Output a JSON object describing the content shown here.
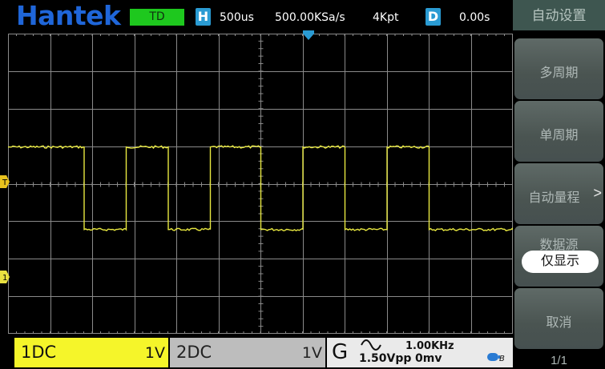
{
  "topbar": {
    "logo": "Hantek",
    "trigger_mode": "TD",
    "horizontal_icon": "H",
    "timebase": "500us",
    "sample_rate": "500.00KSa/s",
    "memory_depth": "4Kpt",
    "delay_icon": "D",
    "delay": "0.00s"
  },
  "grid_markers": {
    "trigger_level_marker": "T",
    "ch1_ground_marker": "1"
  },
  "bottombar": {
    "ch1": {
      "name": "1DC",
      "scale": "1V",
      "color": "#f5f52a"
    },
    "ch2": {
      "name": "2DC",
      "scale": "1V",
      "color": "#bdbdbd"
    },
    "generator": {
      "letter": "G",
      "wave_icon": "sine-icon",
      "frequency": "1.00KHz",
      "amplitude": "1.50Vpp",
      "offset": "0mv"
    }
  },
  "menu": {
    "title": "自动设置",
    "items": [
      {
        "label": "多周期"
      },
      {
        "label": "单周期"
      },
      {
        "label": "自动量程",
        "arrow": ">"
      },
      {
        "label": "数据源",
        "value": "仅显示"
      },
      {
        "label": "取消"
      }
    ],
    "page": "1/1"
  },
  "colors": {
    "logo": "#1f66d9",
    "trigger_mode_bg": "#1ec81e",
    "trace_ch1": "#e8e840",
    "grid": "#8a8a8a",
    "menu_button": "#4f5a57",
    "menu_title_bg": "#3e5650"
  },
  "waveform": {
    "channel": "CH1",
    "shape": "square",
    "levels_div": {
      "high": 1,
      "low": -1.2
    },
    "transition_edges_div": [
      -4.2,
      -3.2,
      -2.2,
      -1.2,
      0,
      1,
      2,
      3,
      4
    ],
    "trigger_point_div": 0
  }
}
